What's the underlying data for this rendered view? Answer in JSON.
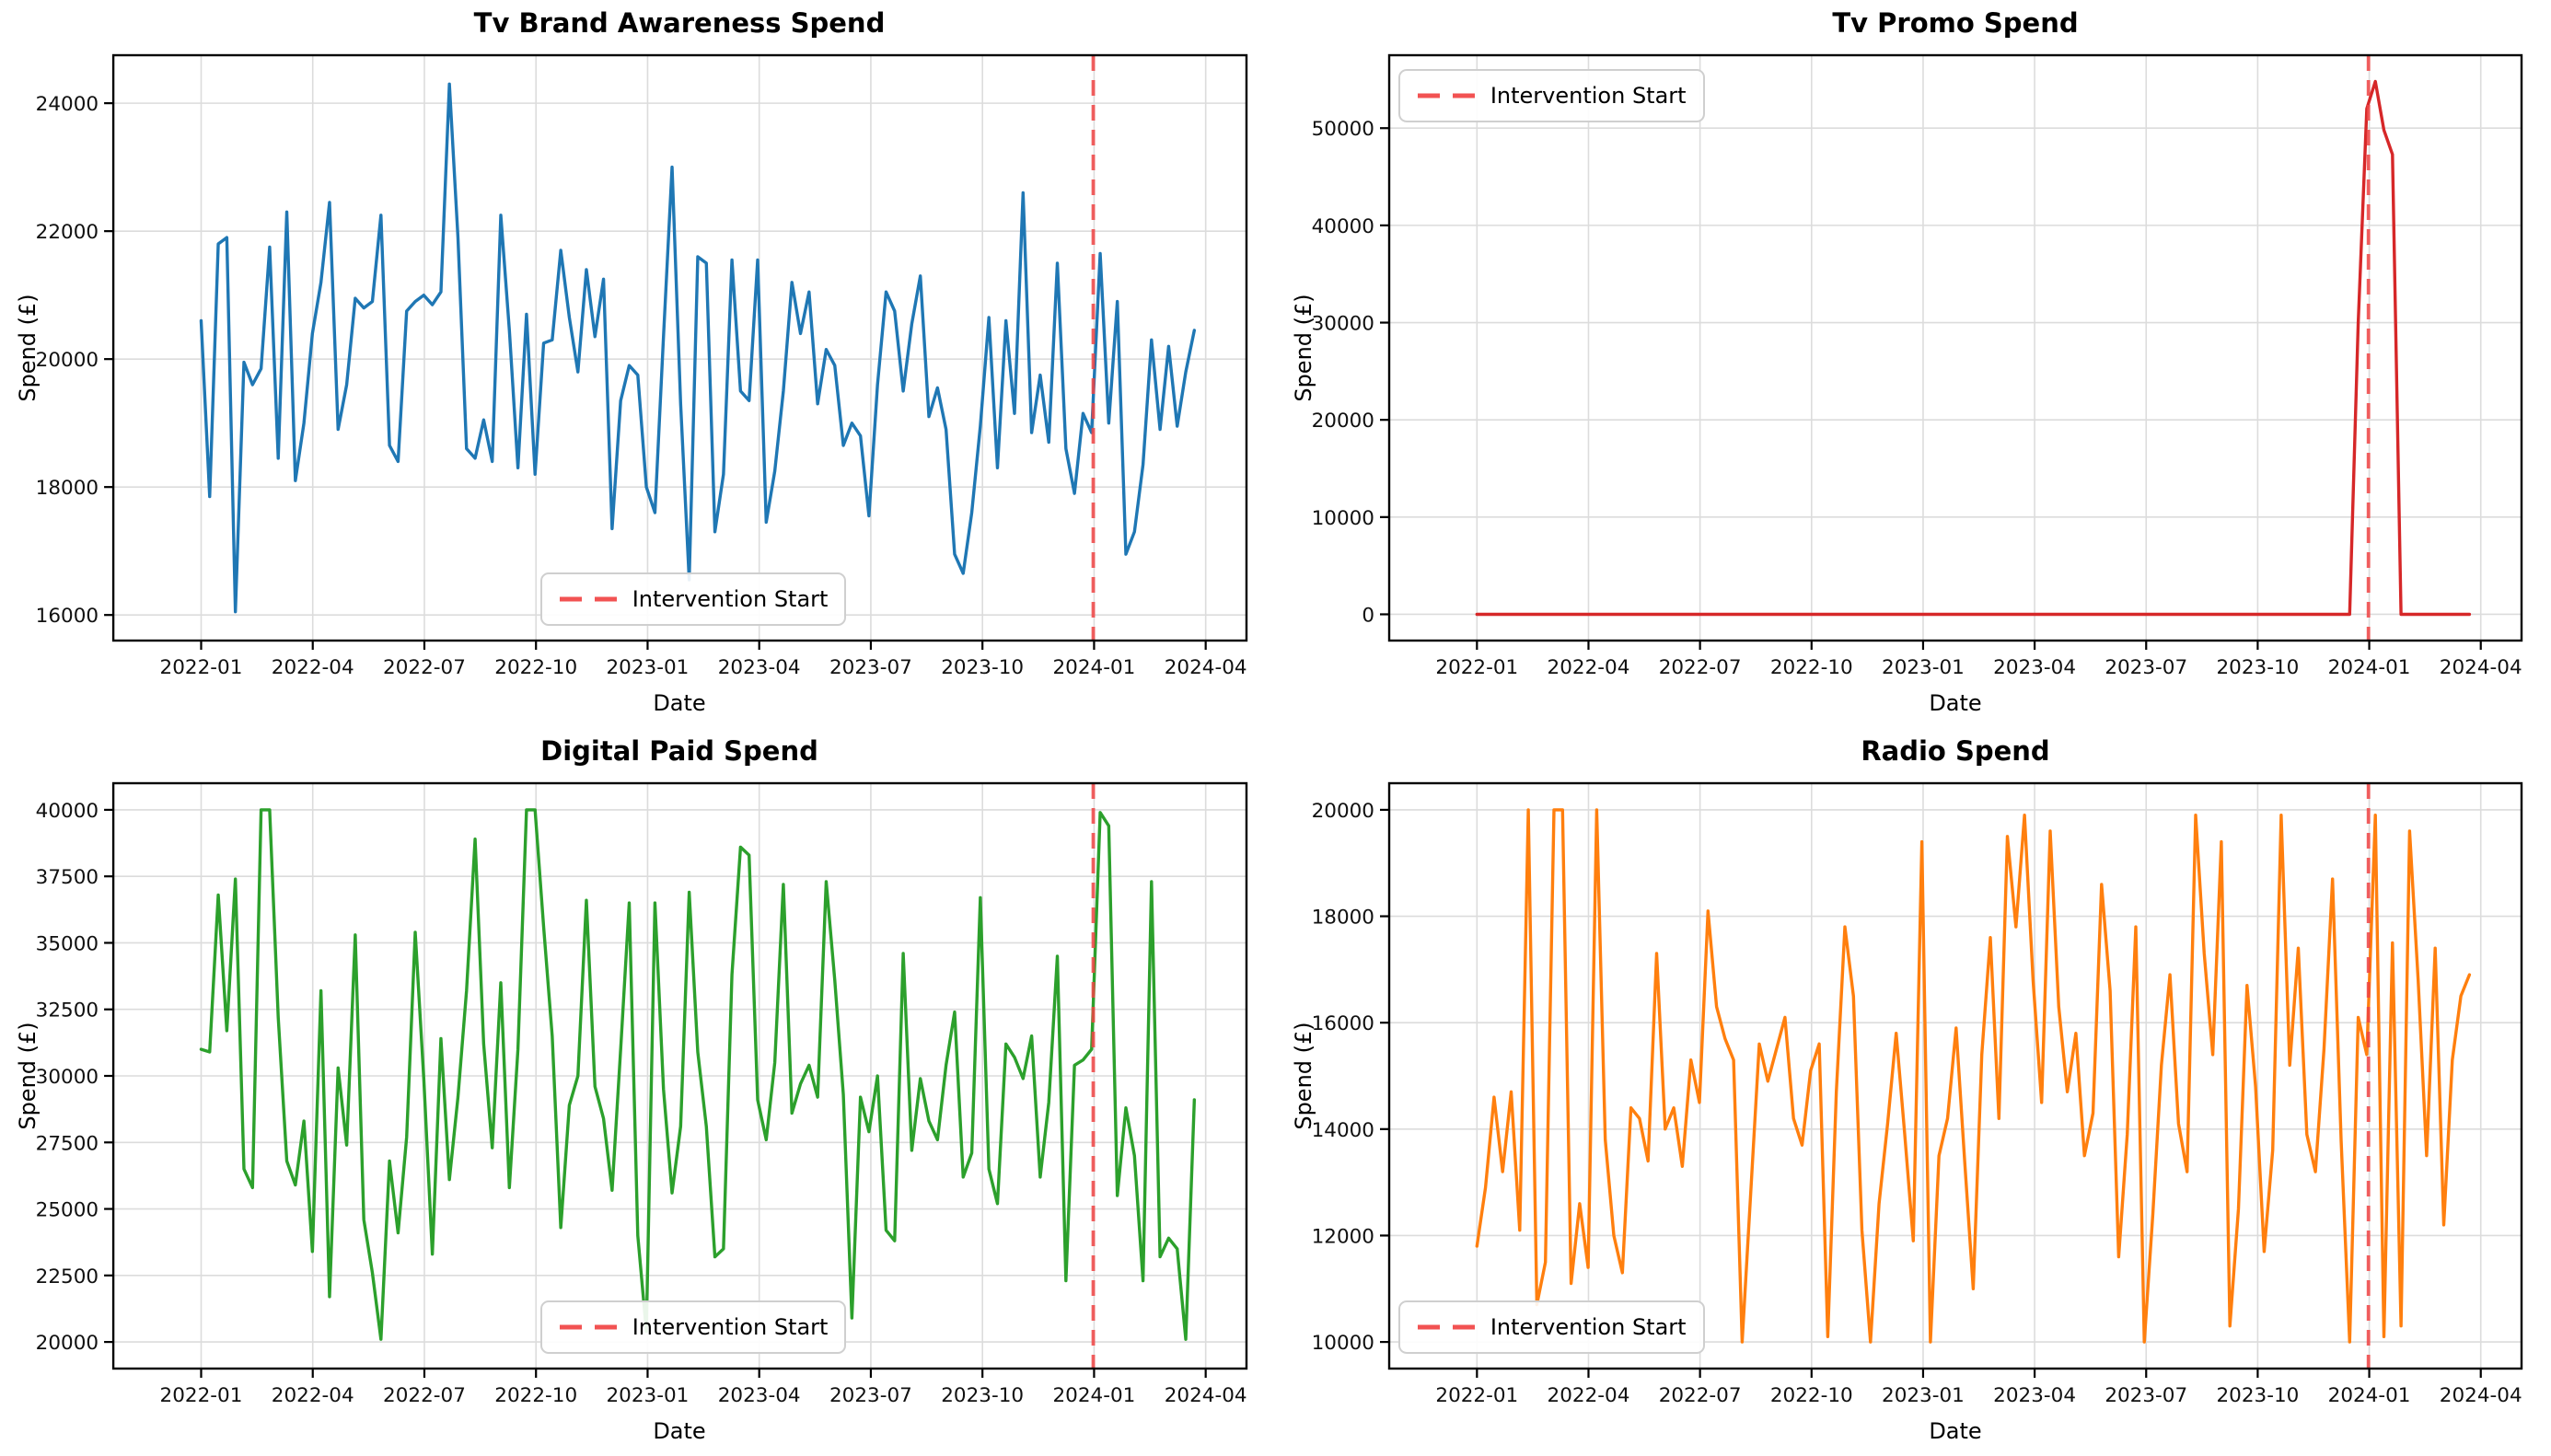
{
  "figure": {
    "background": "#ffffff"
  },
  "chart_data": {
    "type": "line",
    "layout": "2x2 subplots",
    "grid": true,
    "xlabel": "Date",
    "ylabel": "Spend (£)",
    "x_tick_labels": [
      "2022-01",
      "2022-04",
      "2022-07",
      "2022-10",
      "2023-01",
      "2023-04",
      "2023-07",
      "2023-10",
      "2024-01",
      "2024-04"
    ],
    "x_points": {
      "start": "2022-01-02",
      "step_days": 7,
      "count": 117
    },
    "intervention": {
      "label": "Intervention Start",
      "date": "2024-01-01",
      "line_color": "#ef4444",
      "line_style": "dashed"
    },
    "charts": [
      {
        "title": "Tv Brand Awareness Spend",
        "color": "#1f77b4",
        "ylim": [
          15600,
          24750
        ],
        "yticks": [
          16000,
          18000,
          20000,
          22000,
          24000
        ],
        "legend_position": "lower center",
        "values": [
          20600,
          17850,
          21800,
          21900,
          16050,
          19950,
          19600,
          19850,
          21750,
          18450,
          22300,
          18100,
          19000,
          20400,
          21200,
          22450,
          18900,
          19600,
          20950,
          20800,
          20900,
          22250,
          18650,
          18400,
          20750,
          20900,
          21000,
          20850,
          21050,
          24300,
          21900,
          18600,
          18450,
          19050,
          18400,
          22250,
          20450,
          18300,
          20700,
          18200,
          20250,
          20300,
          21700,
          20650,
          19800,
          21400,
          20350,
          21250,
          17350,
          19350,
          19900,
          19750,
          18000,
          17600,
          20350,
          23000,
          19300,
          16550,
          21600,
          21500,
          17300,
          18200,
          21550,
          19500,
          19350,
          21550,
          17450,
          18250,
          19500,
          21200,
          20400,
          21050,
          19300,
          20150,
          19900,
          18650,
          19000,
          18800,
          17550,
          19600,
          21050,
          20750,
          19500,
          20550,
          21300,
          19100,
          19550,
          18900,
          16950,
          16650,
          17600,
          18950,
          20650,
          18300,
          20600,
          19150,
          22600,
          18850,
          19750,
          18700,
          21500,
          18600,
          17900,
          19150,
          18850,
          21650,
          19000,
          20900,
          16950,
          17300,
          18350,
          20300,
          18900,
          20200,
          18950,
          19800,
          20450
        ]
      },
      {
        "title": "Tv Promo Spend",
        "color": "#d62728",
        "ylim": [
          -2700,
          57500
        ],
        "yticks": [
          0,
          10000,
          20000,
          30000,
          40000,
          50000
        ],
        "legend_position": "upper left",
        "values": [
          0,
          0,
          0,
          0,
          0,
          0,
          0,
          0,
          0,
          0,
          0,
          0,
          0,
          0,
          0,
          0,
          0,
          0,
          0,
          0,
          0,
          0,
          0,
          0,
          0,
          0,
          0,
          0,
          0,
          0,
          0,
          0,
          0,
          0,
          0,
          0,
          0,
          0,
          0,
          0,
          0,
          0,
          0,
          0,
          0,
          0,
          0,
          0,
          0,
          0,
          0,
          0,
          0,
          0,
          0,
          0,
          0,
          0,
          0,
          0,
          0,
          0,
          0,
          0,
          0,
          0,
          0,
          0,
          0,
          0,
          0,
          0,
          0,
          0,
          0,
          0,
          0,
          0,
          0,
          0,
          0,
          0,
          0,
          0,
          0,
          0,
          0,
          0,
          0,
          0,
          0,
          0,
          0,
          0,
          0,
          0,
          0,
          0,
          0,
          0,
          0,
          0,
          0,
          30000,
          52000,
          54800,
          49800,
          47300,
          0,
          0,
          0,
          0,
          0,
          0,
          0,
          0,
          0
        ]
      },
      {
        "title": "Digital Paid Spend",
        "color": "#2ca02c",
        "ylim": [
          19000,
          41000
        ],
        "yticks": [
          20000,
          22500,
          25000,
          27500,
          30000,
          32500,
          35000,
          37500,
          40000
        ],
        "legend_position": "lower center",
        "values": [
          31000,
          30900,
          36800,
          31700,
          37400,
          26500,
          25800,
          40000,
          40000,
          32200,
          26800,
          25900,
          28300,
          23400,
          33200,
          21700,
          30300,
          27400,
          35300,
          24600,
          22600,
          20100,
          26800,
          24100,
          27700,
          35400,
          29900,
          23300,
          31400,
          26100,
          29200,
          33200,
          38900,
          31200,
          27300,
          33500,
          25800,
          31000,
          40000,
          40000,
          35600,
          31500,
          24300,
          28900,
          30000,
          36600,
          29600,
          28400,
          25700,
          31000,
          36500,
          24000,
          20400,
          36500,
          29500,
          25600,
          28100,
          36900,
          30900,
          28100,
          23200,
          23500,
          33800,
          38600,
          38300,
          29100,
          27600,
          30500,
          37200,
          28600,
          29700,
          30400,
          29200,
          37300,
          33600,
          29300,
          20900,
          29200,
          27900,
          30000,
          24200,
          23800,
          34600,
          27200,
          29900,
          28300,
          27600,
          30400,
          32400,
          26200,
          27100,
          36700,
          26500,
          25200,
          31200,
          30700,
          29900,
          31500,
          26200,
          29000,
          34500,
          22300,
          30400,
          30600,
          31000,
          39900,
          39400,
          25500,
          28800,
          27000,
          22300,
          37300,
          23200,
          23900,
          23500,
          20100,
          29100
        ]
      },
      {
        "title": "Radio Spend",
        "color": "#ff7f0e",
        "ylim": [
          9500,
          20500
        ],
        "yticks": [
          10000,
          12000,
          14000,
          16000,
          18000,
          20000
        ],
        "legend_position": "lower left",
        "values": [
          11800,
          12900,
          14600,
          13200,
          14700,
          12100,
          20000,
          10700,
          11500,
          20000,
          20000,
          11100,
          12600,
          11400,
          20000,
          13800,
          12000,
          11300,
          14400,
          14200,
          13400,
          17300,
          14000,
          14400,
          13300,
          15300,
          14500,
          18100,
          16300,
          15700,
          15300,
          10000,
          12800,
          15600,
          14900,
          15500,
          16100,
          14200,
          13700,
          15100,
          15600,
          10100,
          14700,
          17800,
          16500,
          12100,
          10000,
          12600,
          14100,
          15800,
          13900,
          11900,
          19400,
          10000,
          13500,
          14200,
          15900,
          13400,
          11000,
          15400,
          17600,
          14200,
          19500,
          17800,
          19900,
          16800,
          14500,
          19600,
          16300,
          14700,
          15800,
          13500,
          14300,
          18600,
          16600,
          11600,
          13900,
          17800,
          10000,
          12400,
          15200,
          16900,
          14100,
          13200,
          19900,
          17300,
          15400,
          19400,
          10300,
          12500,
          16700,
          14800,
          11700,
          13600,
          19900,
          15200,
          17400,
          13900,
          13200,
          15500,
          18700,
          13800,
          10000,
          16100,
          15400,
          19900,
          10100,
          17500,
          10300,
          19600,
          16800,
          13500,
          17400,
          12200,
          15300,
          16500,
          16900
        ]
      }
    ]
  }
}
